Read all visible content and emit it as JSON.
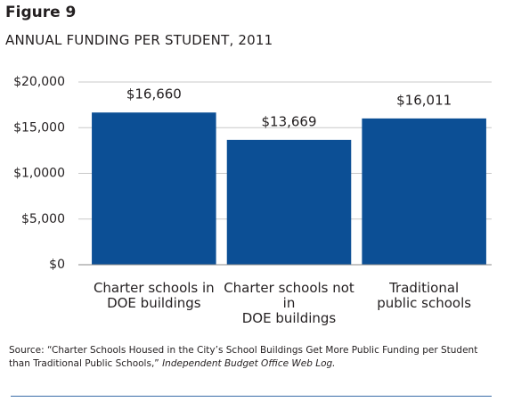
{
  "chart_data": {
    "type": "bar",
    "title": "Figure 9",
    "subtitle": "ANNUAL FUNDING PER STUDENT, 2011",
    "categories": [
      "Charter schools in\nDOE buildings",
      "Charter schools not in\nDOE buildings",
      "Traditional\npublic schools"
    ],
    "values": [
      16660,
      13669,
      16011
    ],
    "value_labels": [
      "$16,660",
      "$13,669",
      "$16,011"
    ],
    "color": "#0c4f95",
    "ylim": [
      0,
      20000
    ],
    "yticks": [
      {
        "value": 0,
        "label": "$0"
      },
      {
        "value": 5000,
        "label": "$5,000"
      },
      {
        "value": 10000,
        "label": "$1,0000"
      },
      {
        "value": 15000,
        "label": "$15,000"
      },
      {
        "value": 20000,
        "label": "$20,000"
      }
    ],
    "grid": true,
    "source": "Source: “Charter Schools Housed in the City’s School Buildings Get More Public Funding per Student than Traditional Public Schools,” ",
    "source_publication": "Independent Budget Office Web Log."
  }
}
